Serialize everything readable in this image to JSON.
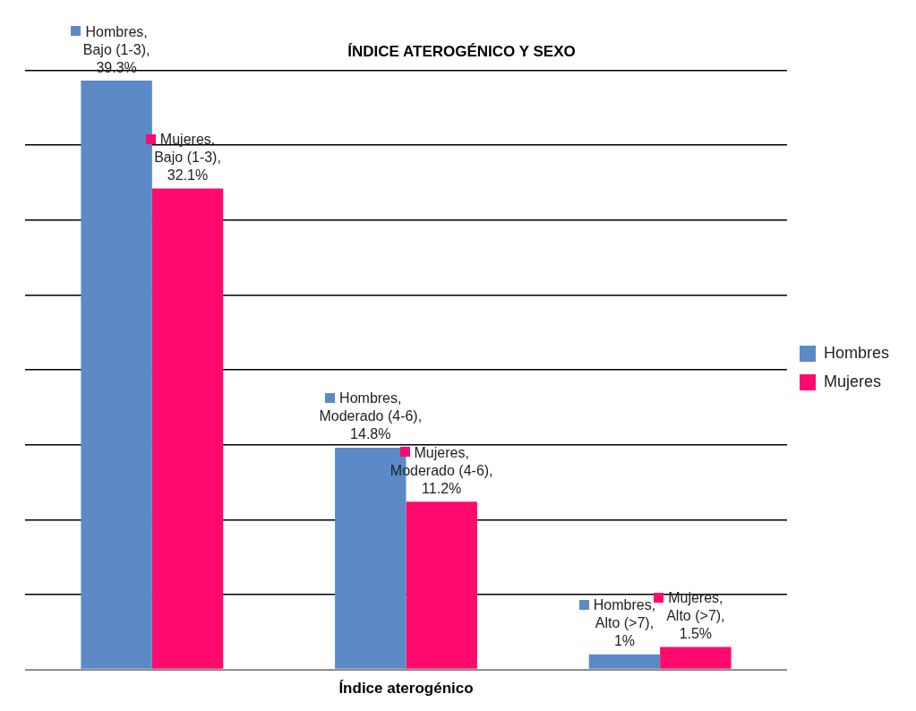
{
  "chart_data": {
    "type": "bar",
    "title": "ÍNDICE ATEROGÉNICO Y SEXO",
    "xlabel": "Índice aterogénico",
    "categories": [
      null,
      null,
      null
    ],
    "series": [
      {
        "name": "Hombres",
        "color": "#5b8ac6",
        "values": [
          39.3,
          14.8,
          1
        ],
        "value_labels": [
          "Hombres, Bajo (1-3), 39.3%",
          "Hombres, Moderado (4-6), 14.8%",
          "Hombres, Alto (>7), 1%"
        ]
      },
      {
        "name": "Mujeres",
        "color": "#ff0a6e",
        "values": [
          32.1,
          11.2,
          1.5
        ],
        "value_labels": [
          "Mujeres, Bajo (1-3), 32.1%",
          "Mujeres, Moderado (4-6), 11.2%",
          "Mujeres, Alto (>7), 1.5%"
        ]
      }
    ],
    "ylim": [
      0,
      40
    ],
    "yticks": [
      0,
      5,
      10,
      15,
      20,
      25,
      30,
      35,
      40
    ],
    "grid": "y",
    "legend": "right",
    "tick_labels": false
  }
}
